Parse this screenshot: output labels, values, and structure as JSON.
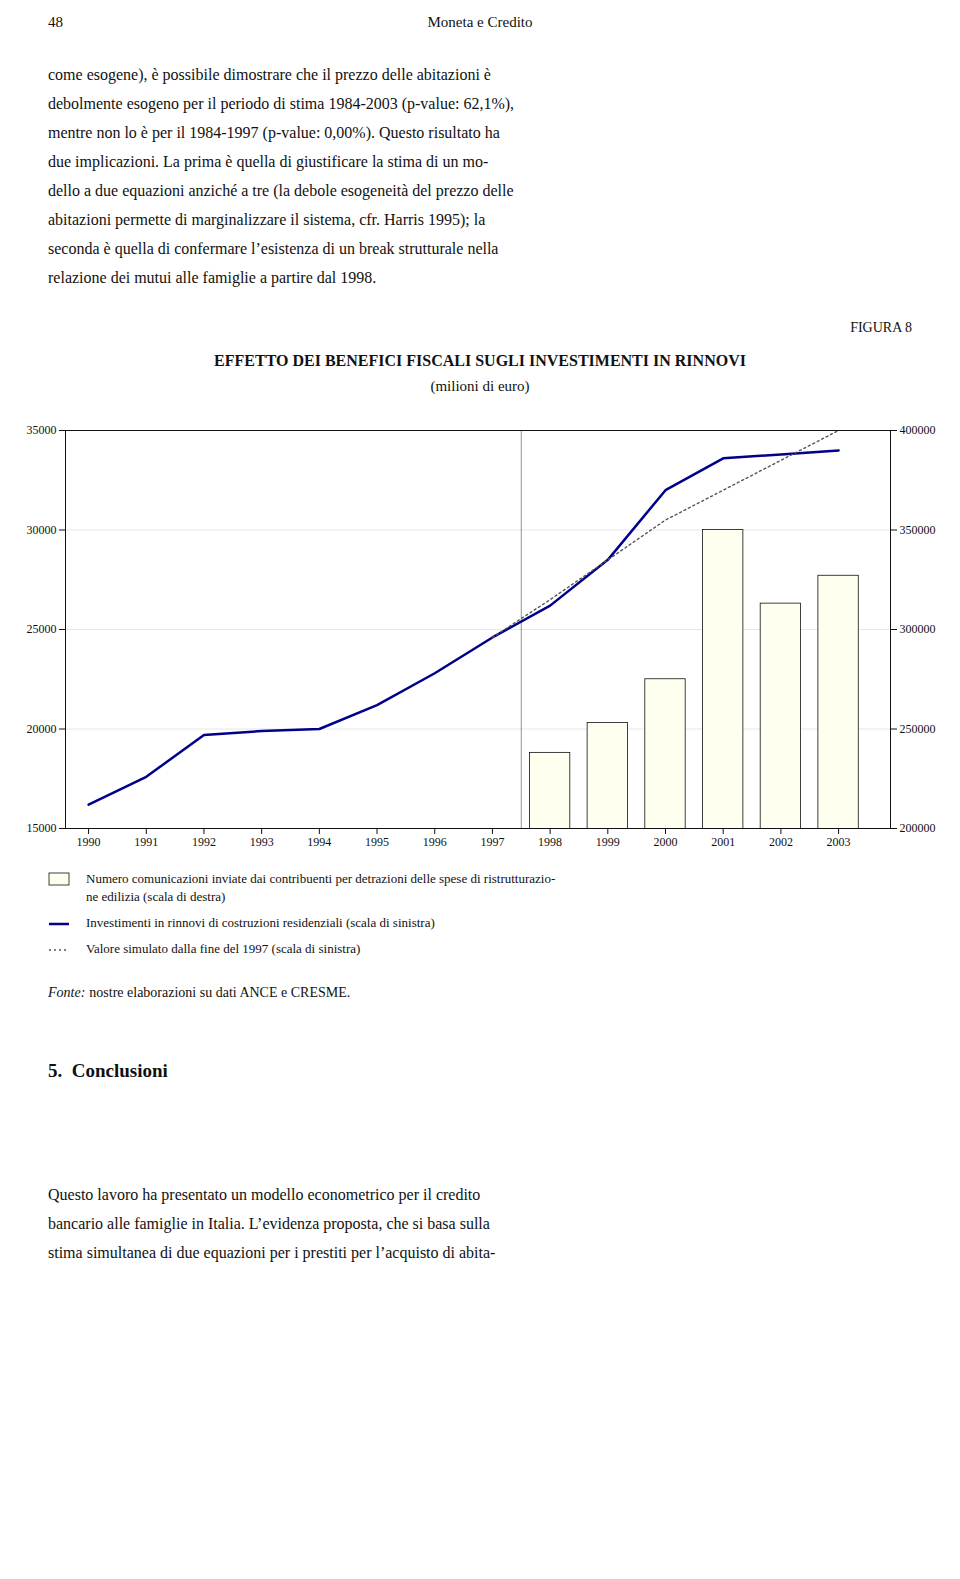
{
  "header_left": "48",
  "header_center": "Moneta e Credito",
  "paragraph1": [
    "come esogene), è possibile dimostrare che il prezzo delle abitazioni è",
    "debolmente esogeno per il periodo di stima 1984-2003 (p-value: 62,1%),",
    "mentre non lo è per il 1984-1997 (p-value: 0,00%). Questo risultato ha",
    "due implicazioni. La prima è quella di giustificare la stima di un mo-",
    "dello a due equazioni anziché a tre (la debole esogeneità del prezzo delle",
    "abitazioni permette di marginalizzare il sistema, cfr. Harris 1995); la",
    "seconda è quella di confermare l’esistenza di un break strutturale nella",
    "relazione dei mutui alle famiglie a partire dal 1998."
  ],
  "figure_label": "FIGURA 8",
  "chart_data": {
    "type": "bar",
    "title": "EFFETTO DEI BENEFICI FISCALI SUGLI INVESTIMENTI IN RINNOVI",
    "subtitle": "(milioni di euro)",
    "x": [
      1990,
      1991,
      1992,
      1993,
      1994,
      1995,
      1996,
      1997,
      1998,
      1999,
      2000,
      2001,
      2002,
      2003
    ],
    "series": [
      {
        "name": "Numero comunicazioni inviate dai contribuenti per detrazioni delle spese di ristrutturazio-\nne edilizia (scala di destra)",
        "type": "bar",
        "axis": "y2",
        "color": "#FFFFF0",
        "values": [
          null,
          null,
          null,
          null,
          null,
          null,
          null,
          null,
          238000,
          253000,
          275000,
          350000,
          313000,
          327000
        ]
      },
      {
        "name": "Investimenti in rinnovi di costruzioni residenziali (scala di sinistra)",
        "type": "line",
        "color": "#00008B",
        "line_style": "solid",
        "values": [
          16200,
          17600,
          19700,
          19900,
          20000,
          21200,
          22800,
          24600,
          26200,
          28500,
          32000,
          33600,
          33800,
          34000
        ]
      },
      {
        "name": "Valore simulato dalla fine del 1997 (scala di sinistra)",
        "type": "line",
        "color": "#555555",
        "line_style": "dotted",
        "values": [
          null,
          null,
          null,
          null,
          null,
          null,
          null,
          24600,
          26500,
          28500,
          30500,
          32000,
          33500,
          35000
        ]
      }
    ],
    "vlines": [
      1997.5
    ],
    "xlim": [
      1989.6,
      2003.9
    ],
    "xticks": [
      1990,
      1991,
      1992,
      1993,
      1994,
      1995,
      1996,
      1997,
      1998,
      1999,
      2000,
      2001,
      2002,
      2003
    ],
    "ylim": [
      15000,
      35000
    ],
    "yticks": [
      15000,
      20000,
      25000,
      30000,
      35000
    ],
    "y2lim": [
      200000,
      400000
    ],
    "y2ticks": [
      200000,
      250000,
      300000,
      350000,
      400000
    ],
    "grid": true
  },
  "source_label": "Fonte:",
  "source": "nostre elaborazioni su dati ANCE e CRESME.",
  "section": "5.  Conclusioni",
  "paragraph2": [
    "Questo lavoro ha presentato un modello econometrico per il credito",
    "bancario alle famiglie in Italia. L’evidenza proposta, che si basa sulla",
    "stima simultanea di due equazioni per i prestiti per l’acquisto di abita-"
  ]
}
